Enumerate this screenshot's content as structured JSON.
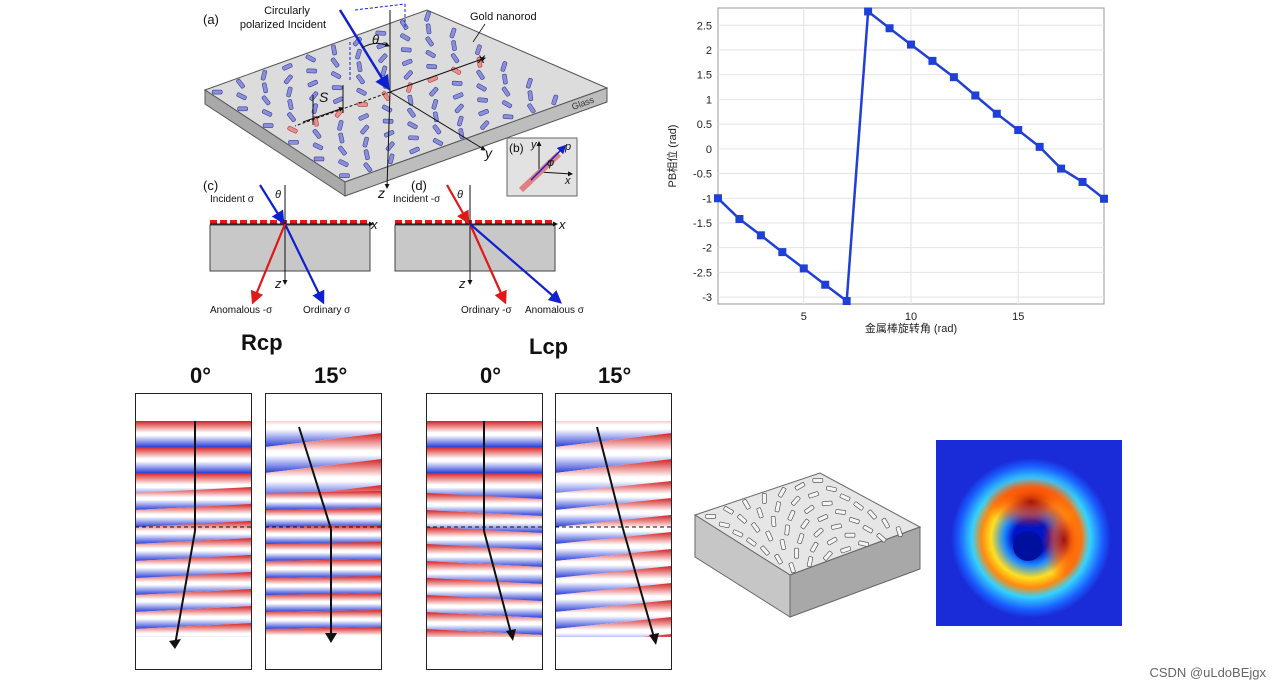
{
  "schematic": {
    "panel_a": "(a)",
    "panel_b": "(b)",
    "panel_c": "(c)",
    "panel_d": "(d)",
    "incident_label_line1": "Circularly",
    "incident_label_line2": "polarized Incident",
    "nanorod_label": "Gold nanorod",
    "glass_label": "Glass",
    "axis_x": "x",
    "axis_y": "y",
    "axis_z": "z",
    "theta": "θ",
    "period": "S",
    "phi": "φ",
    "p_label": "p",
    "c_incident": "Incident σ",
    "c_anomalous": "Anomalous -σ",
    "c_ordinary": "Ordinary σ",
    "d_incident": "Incident -σ",
    "d_ordinary": "Ordinary -σ",
    "d_anomalous": "Anomalous σ"
  },
  "chart_data": {
    "type": "line",
    "title": "",
    "xlabel": "金属棒旋转角 (rad)",
    "ylabel": "PB相位 (rad)",
    "xlim": [
      1,
      19
    ],
    "ylim": [
      -3.14,
      2.85
    ],
    "xticks": [
      "5",
      "10",
      "15"
    ],
    "yticks": [
      "2.5",
      "2",
      "1.5",
      "1",
      "0.5",
      "0",
      "-0.5",
      "-1",
      "-1.5",
      "-2",
      "-2.5",
      "-3"
    ],
    "grid": true,
    "color": "#1f3fd6",
    "series": [
      {
        "name": "PB phase",
        "x": [
          1,
          2,
          3,
          4,
          5,
          6,
          7,
          8,
          9,
          10,
          11,
          12,
          13,
          14,
          15,
          16,
          17,
          18,
          19
        ],
        "y": [
          -1.0,
          -1.42,
          -1.75,
          -2.09,
          -2.42,
          -2.75,
          -3.08,
          2.78,
          2.44,
          2.11,
          1.78,
          1.45,
          1.08,
          0.71,
          0.38,
          0.04,
          -0.4,
          -0.67,
          -1.01
        ]
      }
    ]
  },
  "sim": {
    "rcp_label": "Rcp",
    "lcp_label": "Lcp",
    "angle_0": "0°",
    "angle_15": "15°"
  },
  "watermark": "CSDN @uLdoBEjgx"
}
